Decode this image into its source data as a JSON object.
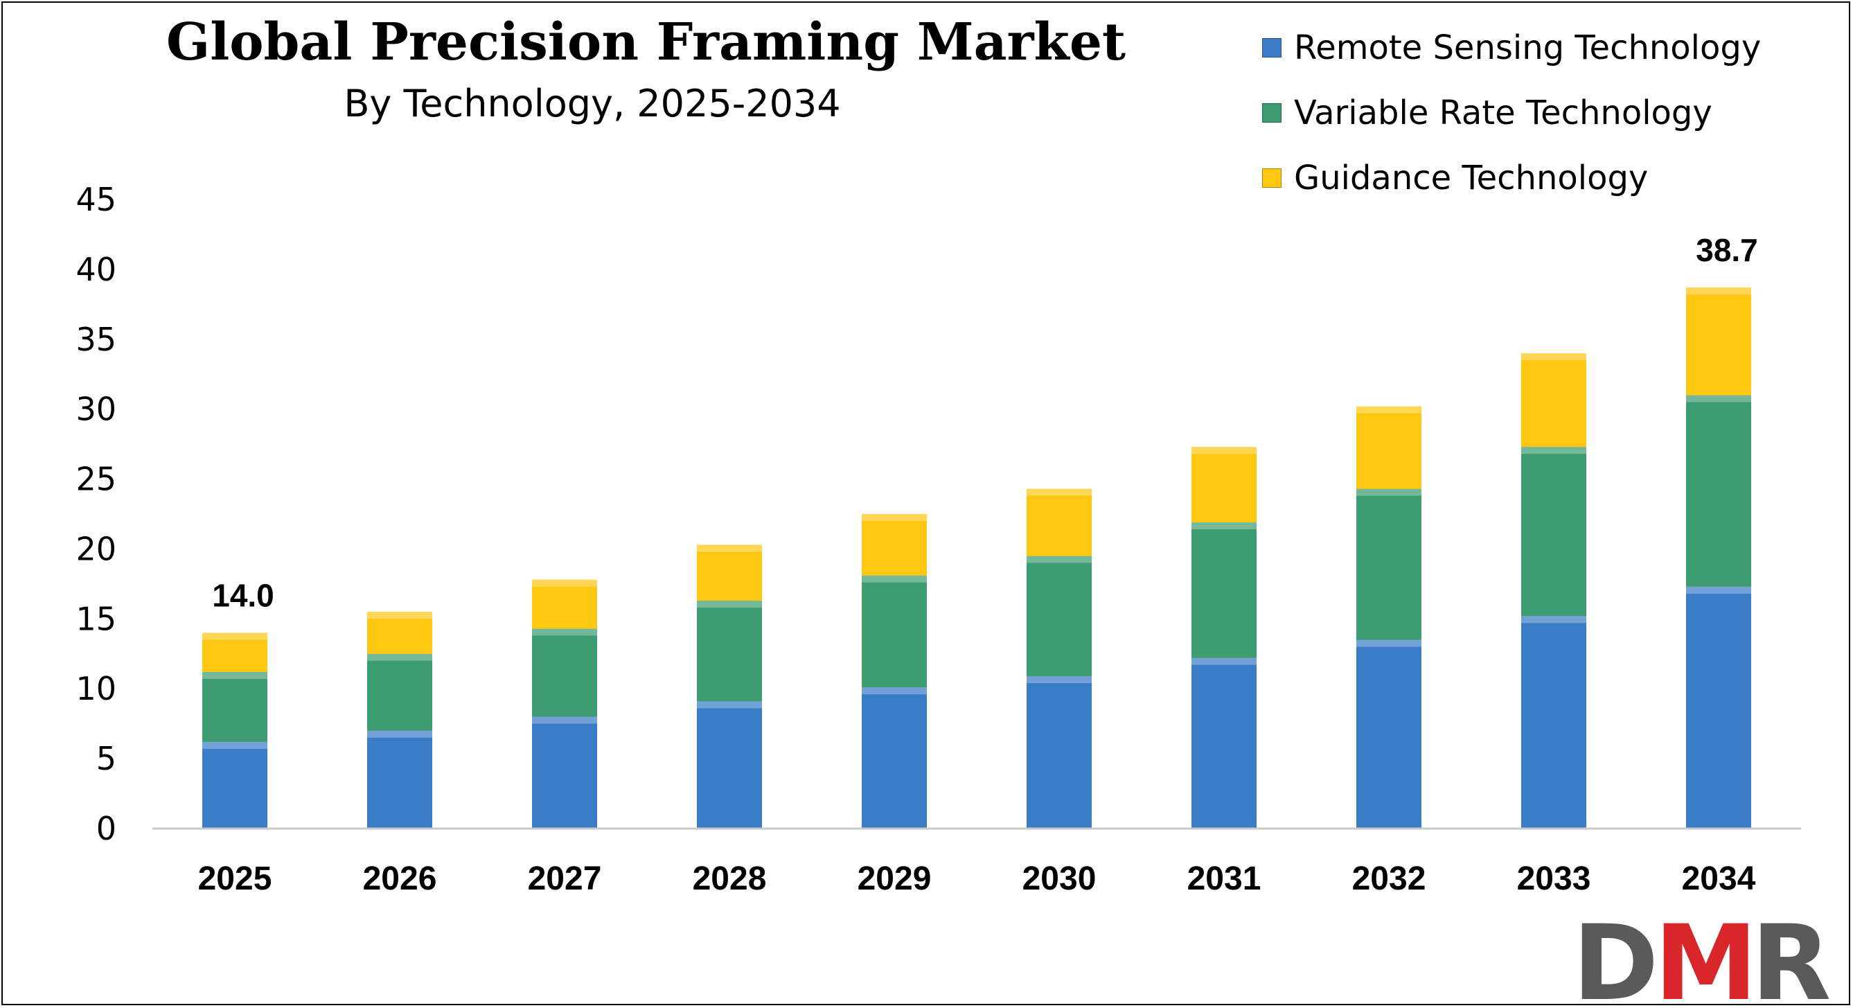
{
  "chart_data": {
    "type": "bar",
    "stacked": true,
    "title": "Global Precision Framing Market",
    "subtitle": "By Technology, 2025-2034",
    "categories": [
      "2025",
      "2026",
      "2027",
      "2028",
      "2029",
      "2030",
      "2031",
      "2032",
      "2033",
      "2034"
    ],
    "series": [
      {
        "name": "Remote Sensing Technology",
        "color": "#3A7CC6",
        "values": [
          6.2,
          7.0,
          8.0,
          9.1,
          10.1,
          10.9,
          12.2,
          13.5,
          15.2,
          17.3
        ]
      },
      {
        "name": "Variable Rate Technology",
        "color": "#3E9C73",
        "values": [
          5.0,
          5.5,
          6.3,
          7.2,
          8.0,
          8.6,
          9.7,
          10.8,
          12.1,
          13.7
        ]
      },
      {
        "name": "Guidance Technology",
        "color": "#FFC712",
        "values": [
          2.8,
          3.0,
          3.5,
          4.0,
          4.4,
          4.8,
          5.4,
          5.9,
          6.7,
          7.7
        ]
      }
    ],
    "data_labels": [
      {
        "category": "2025",
        "text": "14.0"
      },
      {
        "category": "2034",
        "text": "38.7"
      }
    ],
    "ylim": [
      0,
      45
    ],
    "yticks": [
      "0",
      "5",
      "10",
      "15",
      "20",
      "25",
      "30",
      "35",
      "40",
      "45"
    ],
    "xlabel": "",
    "ylabel": "",
    "grid": false,
    "legend_position": "top-right"
  },
  "logo": {
    "text": "DMR",
    "letters": [
      "D",
      "M",
      "R"
    ],
    "colors": [
      "#5A5A5A",
      "#D9262B",
      "#5A5A5A"
    ]
  }
}
